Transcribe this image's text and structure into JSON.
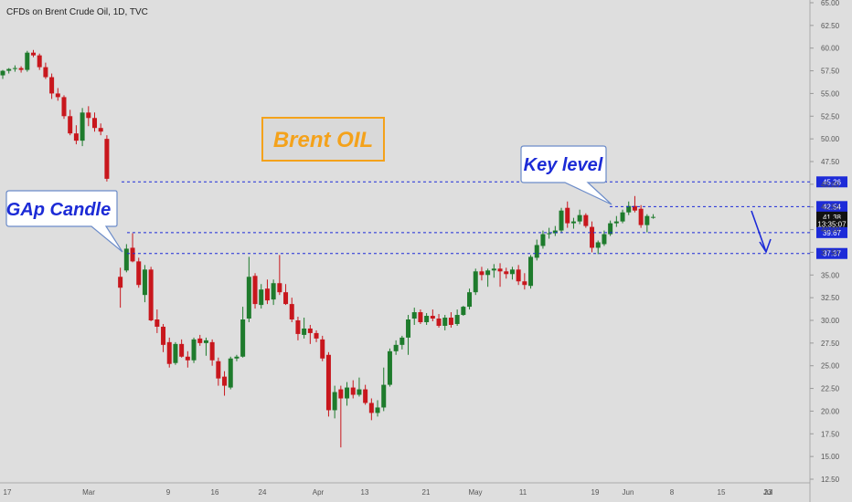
{
  "header": {
    "title": "CFDs on Brent Crude Oil, 1D, TVC"
  },
  "annotations": {
    "brand": "Brent OIL",
    "gap_callout": "GAp Candle",
    "key_callout": "Key level"
  },
  "colors": {
    "up": "#1e7b2c",
    "down": "#c8171d",
    "level": "#1d2bd8",
    "background": "#dedede",
    "brand_box": "#f4a21b"
  },
  "chart_data": {
    "type": "candlestick",
    "title": "CFDs on Brent Crude Oil, 1D, TVC",
    "y_range": [
      12.5,
      65
    ],
    "y_ticks": [
      "65.00",
      "62.50",
      "60.00",
      "57.50",
      "55.00",
      "52.50",
      "50.00",
      "47.50",
      "45.00",
      "42.50",
      "40.00",
      "37.50",
      "35.00",
      "32.50",
      "30.00",
      "27.50",
      "25.00",
      "22.50",
      "20.00",
      "17.50",
      "15.00",
      "12.50"
    ],
    "x_ticks": [
      "17",
      "Mar",
      "9",
      "16",
      "24",
      "Apr",
      "13",
      "21",
      "May",
      "11",
      "19",
      "Jun",
      "8",
      "15",
      "23",
      "Jul"
    ],
    "levels": [
      {
        "label": "45.26",
        "value": 45.26,
        "color": "#1d2bd8"
      },
      {
        "label": "42.54",
        "value": 42.54,
        "color": "#1d2bd8"
      },
      {
        "label": "41.38",
        "value": 41.38,
        "color": "#111111"
      },
      {
        "label": "13:35:07",
        "value": 40.6,
        "color": "#111111"
      },
      {
        "label": "39.67",
        "value": 39.67,
        "color": "#1d2bd8"
      },
      {
        "label": "37.37",
        "value": 37.37,
        "color": "#1d2bd8"
      }
    ],
    "candles": [
      [
        57.0,
        57.6,
        56.6,
        57.5
      ],
      [
        57.5,
        57.8,
        57.2,
        57.7
      ],
      [
        57.7,
        58.1,
        57.4,
        57.8
      ],
      [
        57.8,
        58.0,
        57.3,
        57.6
      ],
      [
        57.6,
        59.7,
        57.4,
        59.5
      ],
      [
        59.5,
        59.8,
        59.0,
        59.2
      ],
      [
        59.2,
        59.4,
        57.6,
        57.9
      ],
      [
        57.9,
        58.4,
        56.6,
        56.8
      ],
      [
        56.8,
        57.2,
        54.4,
        55.0
      ],
      [
        55.0,
        55.6,
        54.2,
        54.6
      ],
      [
        54.6,
        54.8,
        52.2,
        52.5
      ],
      [
        52.5,
        53.2,
        50.4,
        50.6
      ],
      [
        50.6,
        51.5,
        49.4,
        49.8
      ],
      [
        49.8,
        53.4,
        49.2,
        52.9
      ],
      [
        52.9,
        53.6,
        51.4,
        52.3
      ],
      [
        52.3,
        52.9,
        50.8,
        51.2
      ],
      [
        51.2,
        51.7,
        50.4,
        50.8
      ],
      [
        50.0,
        50.4,
        45.3,
        45.6
      ],
      [
        34.8,
        35.8,
        31.4,
        33.6
      ],
      [
        35.5,
        38.4,
        35.3,
        37.9
      ],
      [
        38.0,
        39.6,
        36.4,
        36.5
      ],
      [
        36.5,
        36.9,
        33.6,
        33.9
      ],
      [
        32.8,
        36.1,
        32.0,
        35.6
      ],
      [
        35.6,
        35.9,
        29.9,
        30.0
      ],
      [
        30.1,
        31.2,
        28.6,
        29.3
      ],
      [
        29.3,
        29.6,
        26.5,
        27.3
      ],
      [
        27.6,
        28.1,
        24.8,
        25.2
      ],
      [
        25.3,
        27.6,
        25.1,
        27.4
      ],
      [
        27.4,
        27.9,
        25.9,
        26.0
      ],
      [
        26.0,
        26.6,
        24.8,
        25.6
      ],
      [
        25.6,
        28.1,
        25.3,
        27.9
      ],
      [
        28.0,
        28.4,
        27.2,
        27.5
      ],
      [
        27.5,
        28.1,
        26.1,
        27.8
      ],
      [
        27.6,
        27.9,
        25.0,
        25.6
      ],
      [
        25.5,
        25.9,
        22.8,
        23.6
      ],
      [
        23.8,
        24.4,
        21.7,
        22.8
      ],
      [
        22.6,
        26.0,
        22.4,
        25.8
      ],
      [
        25.8,
        26.2,
        25.5,
        26.0
      ],
      [
        26.0,
        31.5,
        25.9,
        30.1
      ],
      [
        30.2,
        37.0,
        29.8,
        34.8
      ],
      [
        34.9,
        35.2,
        31.3,
        31.8
      ],
      [
        31.7,
        34.0,
        31.3,
        33.4
      ],
      [
        33.5,
        34.5,
        31.8,
        32.2
      ],
      [
        32.3,
        34.5,
        31.7,
        34.1
      ],
      [
        34.1,
        37.2,
        32.8,
        33.1
      ],
      [
        33.1,
        34.0,
        31.7,
        31.8
      ],
      [
        31.8,
        32.5,
        29.8,
        30.1
      ],
      [
        30.0,
        30.4,
        27.8,
        28.5
      ],
      [
        28.4,
        30.3,
        28.0,
        29.1
      ],
      [
        29.1,
        29.5,
        27.4,
        28.6
      ],
      [
        28.6,
        28.9,
        27.6,
        28.0
      ],
      [
        27.9,
        28.3,
        25.5,
        25.8
      ],
      [
        26.2,
        26.5,
        19.4,
        20.1
      ],
      [
        20.1,
        22.8,
        19.2,
        22.1
      ],
      [
        22.4,
        22.8,
        16.0,
        21.4
      ],
      [
        21.4,
        23.2,
        20.6,
        22.6
      ],
      [
        22.6,
        23.4,
        21.4,
        21.8
      ],
      [
        21.8,
        23.7,
        21.6,
        22.4
      ],
      [
        22.4,
        22.9,
        20.7,
        20.9
      ],
      [
        20.9,
        21.4,
        19.0,
        19.8
      ],
      [
        19.8,
        21.2,
        19.4,
        20.4
      ],
      [
        20.4,
        24.8,
        20.0,
        22.9
      ],
      [
        22.9,
        26.9,
        22.7,
        26.6
      ],
      [
        26.6,
        27.8,
        26.2,
        27.3
      ],
      [
        27.3,
        28.3,
        26.8,
        28.1
      ],
      [
        28.1,
        30.6,
        26.2,
        30.1
      ],
      [
        30.2,
        31.4,
        29.5,
        30.9
      ],
      [
        30.9,
        31.2,
        29.6,
        29.8
      ],
      [
        29.8,
        30.8,
        29.5,
        30.5
      ],
      [
        30.5,
        31.2,
        29.9,
        30.2
      ],
      [
        30.2,
        30.7,
        29.2,
        29.4
      ],
      [
        29.4,
        30.6,
        28.9,
        30.3
      ],
      [
        30.3,
        30.9,
        29.2,
        29.5
      ],
      [
        29.6,
        31.2,
        29.4,
        30.6
      ],
      [
        30.6,
        31.6,
        30.5,
        31.5
      ],
      [
        31.5,
        33.5,
        31.2,
        33.1
      ],
      [
        33.1,
        35.7,
        32.8,
        35.4
      ],
      [
        35.4,
        35.9,
        34.4,
        35.0
      ],
      [
        35.0,
        35.7,
        33.7,
        35.5
      ],
      [
        35.5,
        36.2,
        34.7,
        35.7
      ],
      [
        35.7,
        36.3,
        33.7,
        35.4
      ],
      [
        35.4,
        35.8,
        34.6,
        35.1
      ],
      [
        35.1,
        35.9,
        34.5,
        35.6
      ],
      [
        35.6,
        36.1,
        33.9,
        34.3
      ],
      [
        34.3,
        35.2,
        33.4,
        33.9
      ],
      [
        33.8,
        37.2,
        33.5,
        37.0
      ],
      [
        36.9,
        38.9,
        36.6,
        38.3
      ],
      [
        38.2,
        39.9,
        37.9,
        39.5
      ],
      [
        39.5,
        40.2,
        39.0,
        39.6
      ],
      [
        39.6,
        40.4,
        39.3,
        39.9
      ],
      [
        39.9,
        42.4,
        39.6,
        42.1
      ],
      [
        42.4,
        43.1,
        40.2,
        40.7
      ],
      [
        40.7,
        41.3,
        40.1,
        40.9
      ],
      [
        40.9,
        42.2,
        40.6,
        41.6
      ],
      [
        41.6,
        41.8,
        40.2,
        40.4
      ],
      [
        40.3,
        40.9,
        37.5,
        38.0
      ],
      [
        38.0,
        38.8,
        37.3,
        38.6
      ],
      [
        38.4,
        39.9,
        38.2,
        39.5
      ],
      [
        39.5,
        41.0,
        39.3,
        40.7
      ],
      [
        40.7,
        41.5,
        40.3,
        40.9
      ],
      [
        40.9,
        42.2,
        40.7,
        41.9
      ],
      [
        41.9,
        43.1,
        41.6,
        42.6
      ],
      [
        42.6,
        43.7,
        41.9,
        42.1
      ],
      [
        42.3,
        42.7,
        40.2,
        40.5
      ],
      [
        40.5,
        41.7,
        39.7,
        41.5
      ],
      [
        41.3,
        41.7,
        41.2,
        41.4
      ]
    ]
  }
}
